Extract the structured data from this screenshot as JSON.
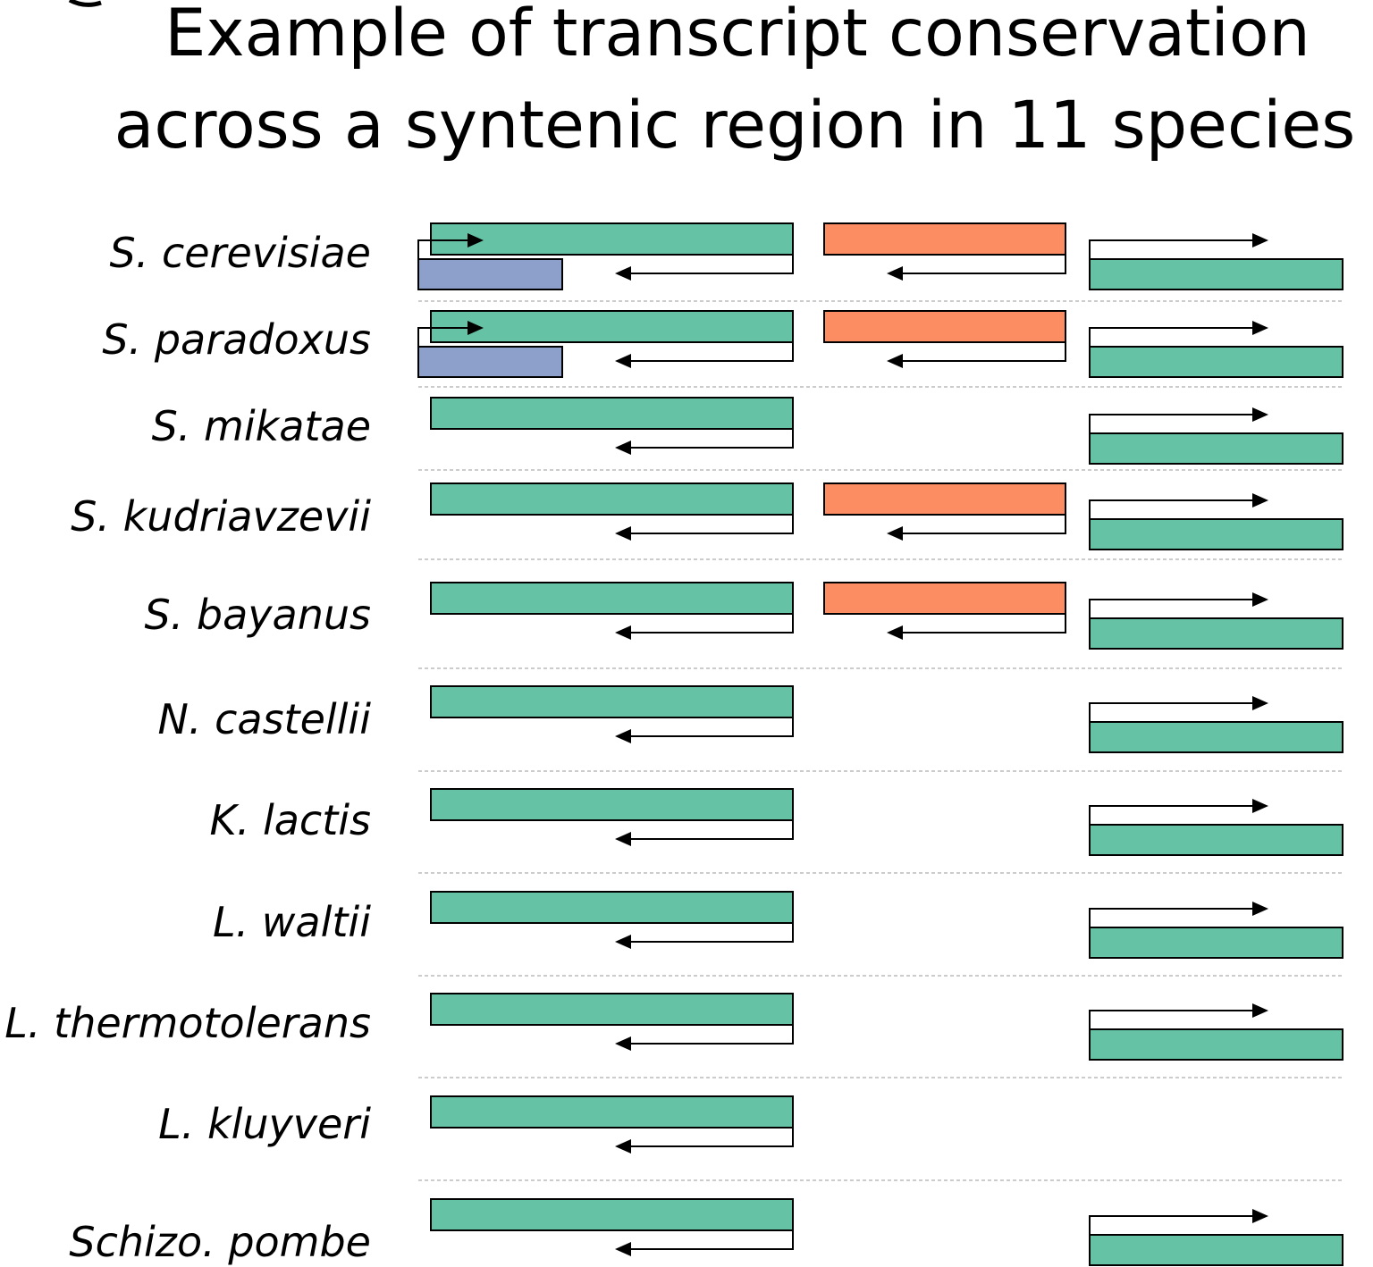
{
  "title": {
    "line1": "Example of transcript conservation",
    "line2": "across a syntenic region in 11 species"
  },
  "colors": {
    "green": "#66c2a5",
    "orange": "#fc8d62",
    "blue": "#8da0cb",
    "outline": "#000000",
    "separator": "#bbbbbb"
  },
  "rows": [
    {
      "species": "S. cerevisiae",
      "genes": {
        "left_green": true,
        "orange": true,
        "right_green": true,
        "blue": true
      }
    },
    {
      "species": "S. paradoxus",
      "genes": {
        "left_green": true,
        "orange": true,
        "right_green": true,
        "blue": true
      }
    },
    {
      "species": "S. mikatae",
      "genes": {
        "left_green": true,
        "orange": false,
        "right_green": true,
        "blue": false
      }
    },
    {
      "species": "S. kudriavzevii",
      "genes": {
        "left_green": true,
        "orange": true,
        "right_green": true,
        "blue": false
      }
    },
    {
      "species": "S. bayanus",
      "genes": {
        "left_green": true,
        "orange": true,
        "right_green": true,
        "blue": false
      }
    },
    {
      "species": "N. castellii",
      "genes": {
        "left_green": true,
        "orange": false,
        "right_green": true,
        "blue": false
      }
    },
    {
      "species": "K. lactis",
      "genes": {
        "left_green": true,
        "orange": false,
        "right_green": true,
        "blue": false
      }
    },
    {
      "species": "L. waltii",
      "genes": {
        "left_green": true,
        "orange": false,
        "right_green": true,
        "blue": false
      }
    },
    {
      "species": "L. thermotolerans",
      "genes": {
        "left_green": true,
        "orange": false,
        "right_green": true,
        "blue": false
      }
    },
    {
      "species": "L. kluyveri",
      "genes": {
        "left_green": true,
        "orange": false,
        "right_green": false,
        "blue": false
      }
    },
    {
      "species": "Schizo. pombe",
      "genes": {
        "left_green": true,
        "orange": false,
        "right_green": true,
        "blue": false
      }
    }
  ]
}
